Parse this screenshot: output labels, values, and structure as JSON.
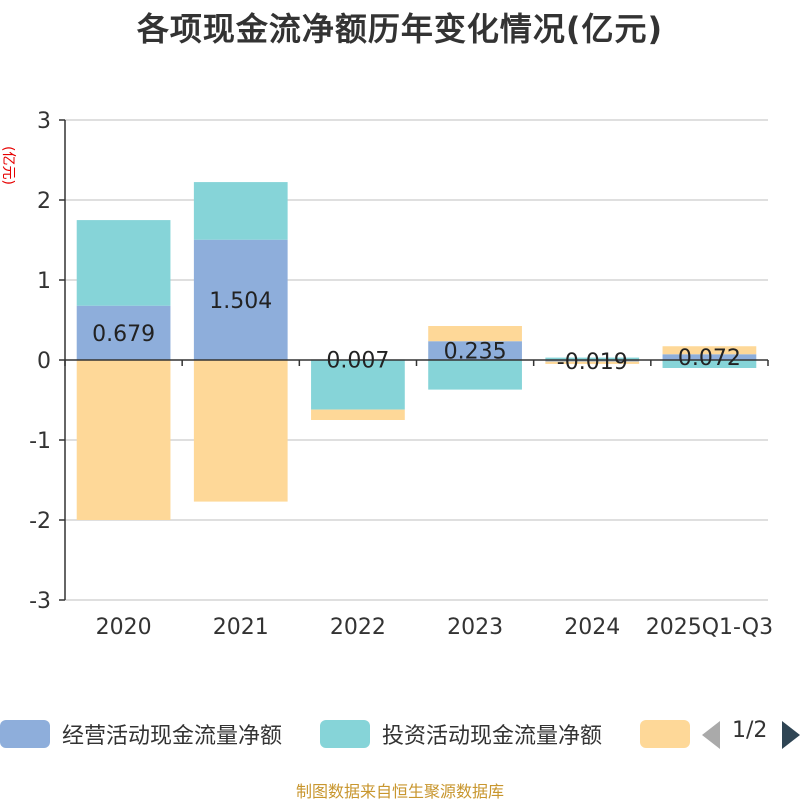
{
  "chart_data": {
    "type": "bar",
    "stacked": true,
    "title": "各项现金流净额历年变化情况(亿元)",
    "ylabel": "(亿元)",
    "xlabel": "",
    "ylim": [
      -3,
      3
    ],
    "yticks": [
      -3,
      -2,
      -1,
      0,
      1,
      2,
      3
    ],
    "grid": true,
    "categories": [
      "2020",
      "2021",
      "2022",
      "2023",
      "2024",
      "2025Q1-Q3"
    ],
    "series": [
      {
        "name": "经营活动现金流量净额",
        "color": "#8eaedb",
        "values": [
          0.679,
          1.504,
          0.007,
          0.235,
          -0.019,
          0.072
        ]
      },
      {
        "name": "投资活动现金流量净额",
        "color": "#86d4d8",
        "values": [
          1.07,
          0.72,
          -0.62,
          -0.37,
          0.03,
          -0.1
        ]
      },
      {
        "name": "",
        "color": "#fed898",
        "values": [
          -2.0,
          -1.77,
          -0.13,
          0.19,
          -0.03,
          0.1
        ]
      }
    ],
    "data_labels": [
      "0.679",
      "1.504",
      "0.007",
      "0.235",
      "-0.019",
      "0.072"
    ],
    "legend_position": "bottom"
  },
  "legend": {
    "items": [
      {
        "label": "经营活动现金流量净额",
        "color": "#8eaedb"
      },
      {
        "label": "投资活动现金流量净额",
        "color": "#86d4d8"
      },
      {
        "label": "",
        "color": "#fed898"
      }
    ],
    "page_indicator": "1/2"
  },
  "source": "制图数据来自恒生聚源数据库"
}
